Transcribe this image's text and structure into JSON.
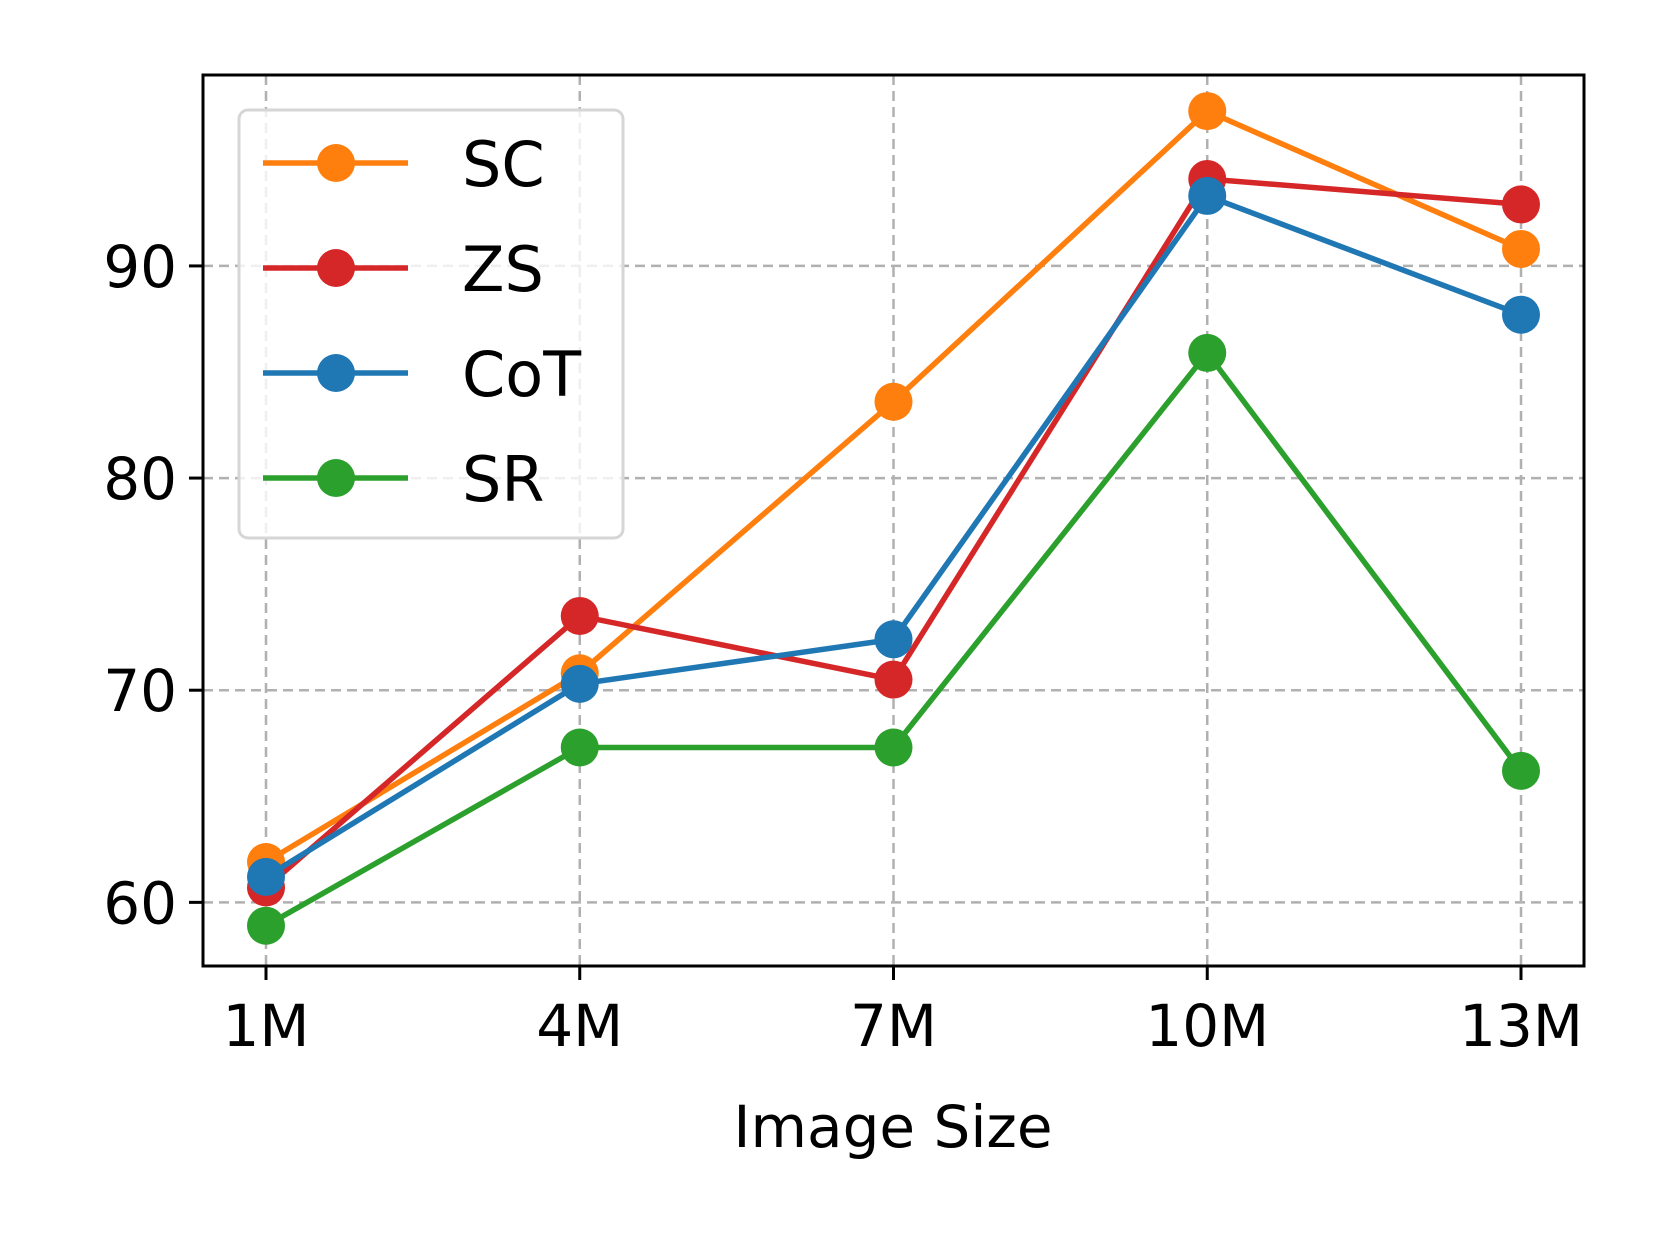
{
  "chart_data": {
    "type": "line",
    "title": "",
    "xlabel": "Image Size",
    "ylabel": "",
    "categories": [
      "1M",
      "4M",
      "7M",
      "10M",
      "13M"
    ],
    "yticks": [
      60,
      70,
      80,
      90
    ],
    "ylim": [
      57,
      99
    ],
    "grid": true,
    "legend_position": "top-left",
    "series": [
      {
        "name": "SC",
        "color": "#ff7f0e",
        "values": [
          61.9,
          70.8,
          83.6,
          97.3,
          90.8
        ]
      },
      {
        "name": "ZS",
        "color": "#d62728",
        "values": [
          60.7,
          73.5,
          70.5,
          94.1,
          92.9
        ]
      },
      {
        "name": "CoT",
        "color": "#1f77b4",
        "values": [
          61.2,
          70.3,
          72.4,
          93.3,
          87.7
        ]
      },
      {
        "name": "SR",
        "color": "#2ca02c",
        "values": [
          58.9,
          67.3,
          67.3,
          85.9,
          66.2
        ]
      }
    ]
  }
}
